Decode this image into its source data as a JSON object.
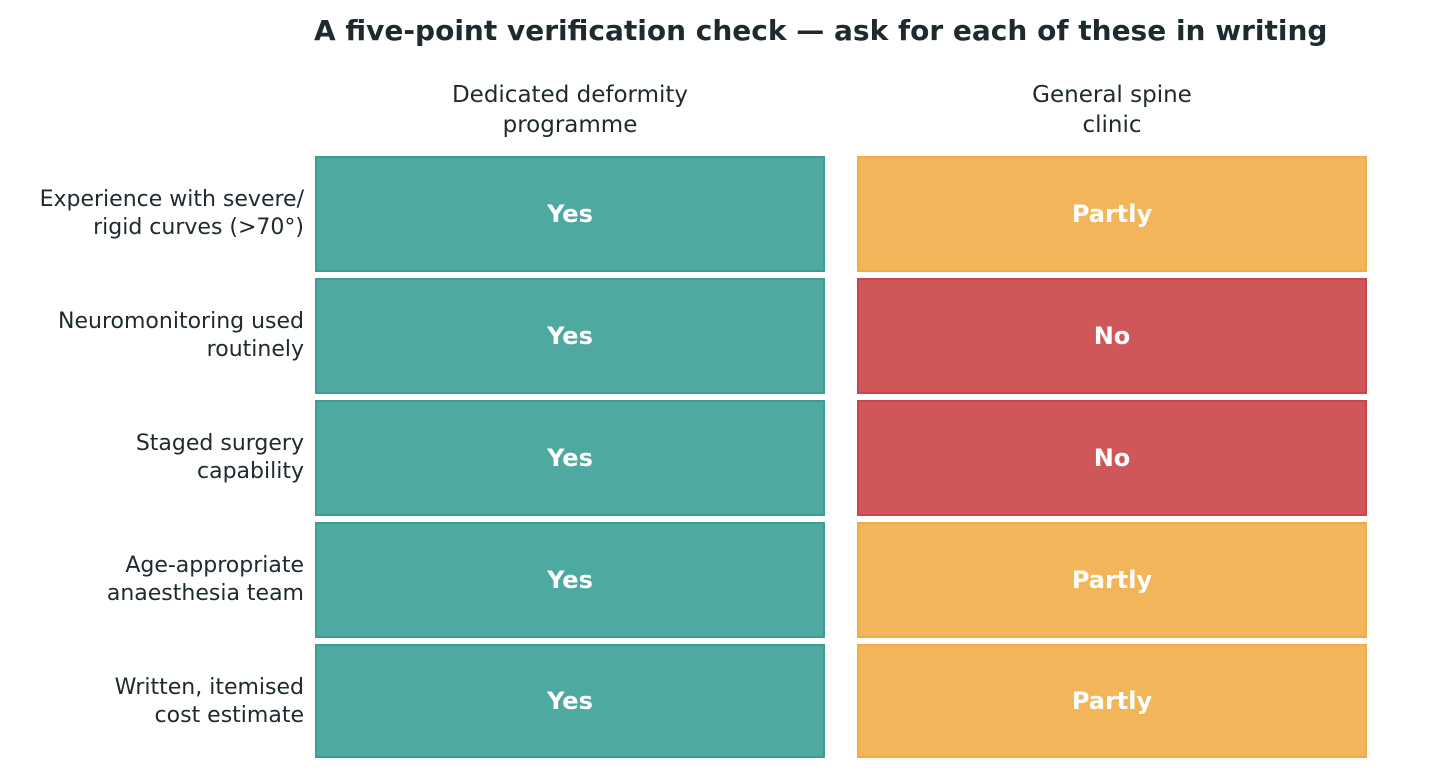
{
  "title": "A five-point verification check — ask for each of these in writing",
  "columns": [
    "Dedicated deformity\nprogramme",
    "General spine\nclinic"
  ],
  "rows": [
    {
      "label": "Experience with severe/\nrigid curves (>70°)",
      "cells": [
        "Yes",
        "Partly"
      ]
    },
    {
      "label": "Neuromonitoring used\nroutinely",
      "cells": [
        "Yes",
        "No"
      ]
    },
    {
      "label": "Staged surgery\ncapability",
      "cells": [
        "Yes",
        "No"
      ]
    },
    {
      "label": "Age-appropriate\nanaesthesia team",
      "cells": [
        "Yes",
        "Partly"
      ]
    },
    {
      "label": "Written, itemised\ncost estimate",
      "cells": [
        "Yes",
        "Partly"
      ]
    }
  ],
  "colors": {
    "Yes": "#4ea9a0",
    "Partly": "#f2b55a",
    "No": "#cf5759"
  },
  "border_colors": {
    "Yes": "#3c9d92",
    "Partly": "#f0ac48",
    "No": "#c8454b"
  }
}
